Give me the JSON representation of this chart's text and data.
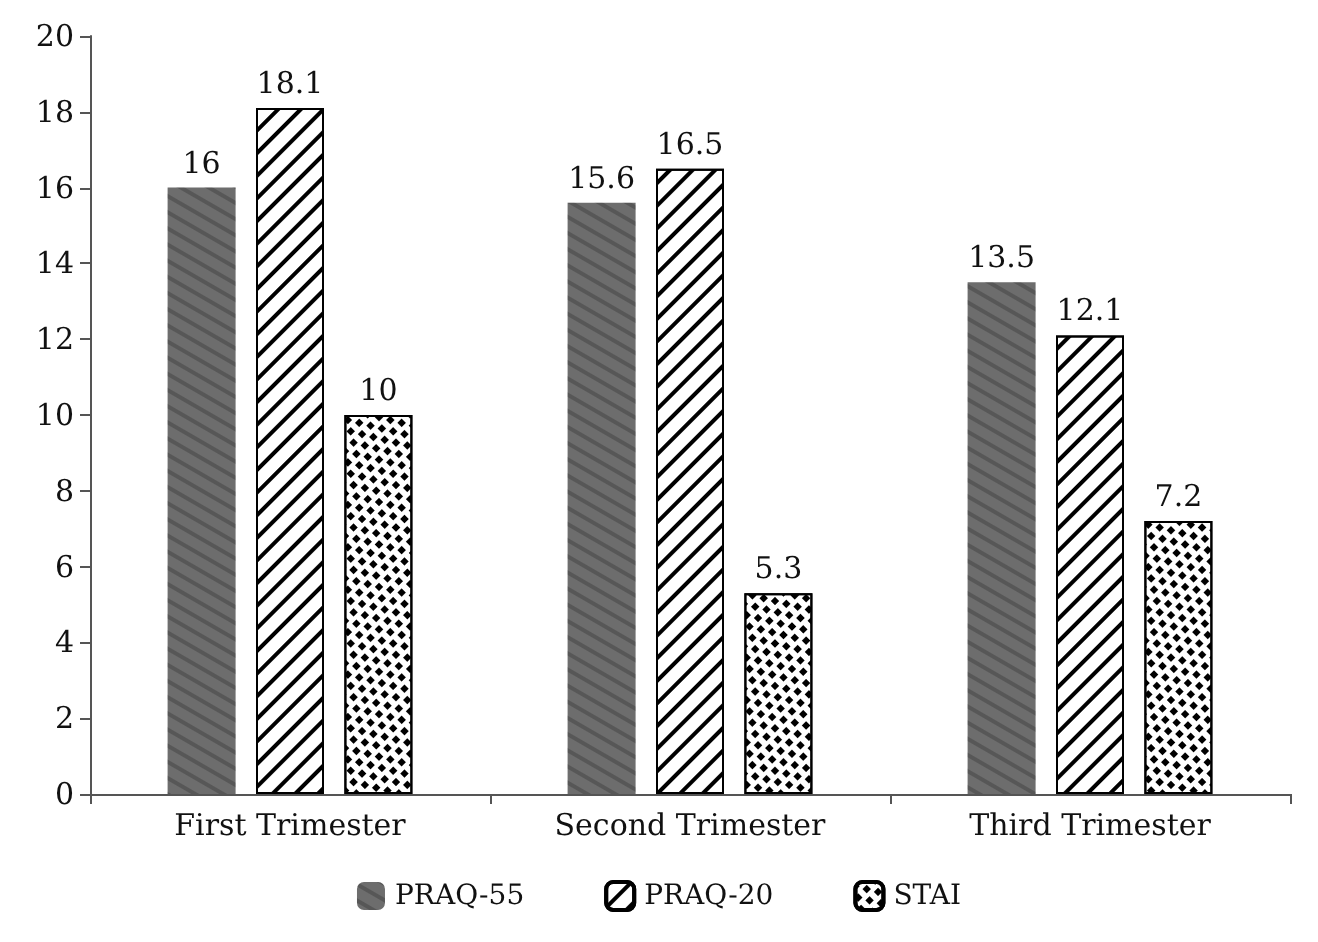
{
  "chart_data": {
    "type": "bar",
    "categories": [
      "First Trimester",
      "Second Trimester",
      "Third Trimester"
    ],
    "series": [
      {
        "name": "PRAQ-55",
        "color": "#6d6d6d",
        "values": [
          16,
          15.6,
          13.5
        ]
      },
      {
        "name": "PRAQ-20",
        "color": "#ffffff",
        "values": [
          18.1,
          16.5,
          12.1
        ]
      },
      {
        "name": "STAI",
        "color": "#ffffff",
        "values": [
          10,
          5.3,
          7.2
        ]
      }
    ],
    "ylim": [
      0,
      20
    ],
    "yticks": [
      0,
      2,
      4,
      6,
      8,
      10,
      12,
      14,
      16,
      18,
      20
    ],
    "data_labels": true,
    "grid": false,
    "legend": "bottom"
  }
}
